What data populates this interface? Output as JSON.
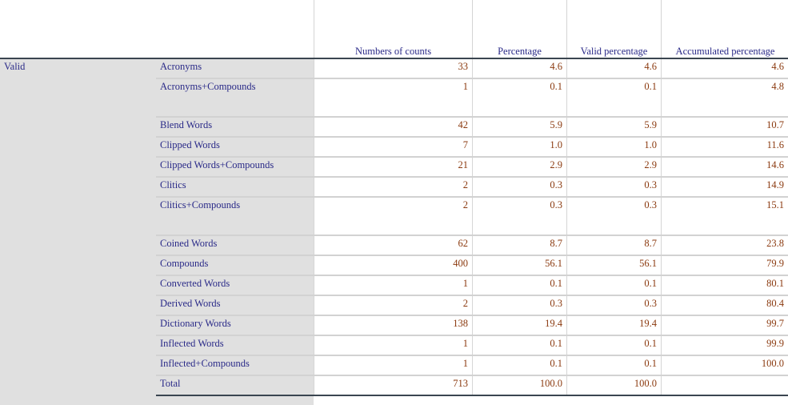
{
  "header": {
    "columns": [
      "Numbers of counts",
      "Percentage",
      "Valid percentage",
      "Accumulated percentage"
    ]
  },
  "group_label": "Valid",
  "rows": [
    {
      "label": "Acronyms",
      "count": "33",
      "pct": "4.6",
      "valid": "4.6",
      "acc": "4.6"
    },
    {
      "label": "Acronyms+Compounds",
      "count": "1",
      "pct": "0.1",
      "valid": "0.1",
      "acc": "4.8",
      "tall": true
    },
    {
      "label": "Blend Words",
      "count": "42",
      "pct": "5.9",
      "valid": "5.9",
      "acc": "10.7"
    },
    {
      "label": "Clipped Words",
      "count": "7",
      "pct": "1.0",
      "valid": "1.0",
      "acc": "11.6"
    },
    {
      "label": "Clipped Words+Compounds",
      "count": "21",
      "pct": "2.9",
      "valid": "2.9",
      "acc": "14.6"
    },
    {
      "label": "Clitics",
      "count": "2",
      "pct": "0.3",
      "valid": "0.3",
      "acc": "14.9"
    },
    {
      "label": "Clitics+Compounds",
      "count": "2",
      "pct": "0.3",
      "valid": "0.3",
      "acc": "15.1",
      "tall": true
    },
    {
      "label": "Coined Words",
      "count": "62",
      "pct": "8.7",
      "valid": "8.7",
      "acc": "23.8"
    },
    {
      "label": "Compounds",
      "count": "400",
      "pct": "56.1",
      "valid": "56.1",
      "acc": "79.9"
    },
    {
      "label": "Converted Words",
      "count": "1",
      "pct": "0.1",
      "valid": "0.1",
      "acc": "80.1"
    },
    {
      "label": "Derived Words",
      "count": "2",
      "pct": "0.3",
      "valid": "0.3",
      "acc": "80.4"
    },
    {
      "label": "Dictionary Words",
      "count": "138",
      "pct": "19.4",
      "valid": "19.4",
      "acc": "99.7"
    },
    {
      "label": "Inflected Words",
      "count": "1",
      "pct": "0.1",
      "valid": "0.1",
      "acc": "99.9"
    },
    {
      "label": "Inflected+Compounds",
      "count": "1",
      "pct": "0.1",
      "valid": "0.1",
      "acc": "100.0"
    },
    {
      "label": "Total",
      "count": "713",
      "pct": "100.0",
      "valid": "100.0",
      "acc": ""
    }
  ],
  "colors": {
    "label_text": "#2a2a88",
    "value_text": "#8b3a0f",
    "stub_bg": "#e0e0e0"
  }
}
